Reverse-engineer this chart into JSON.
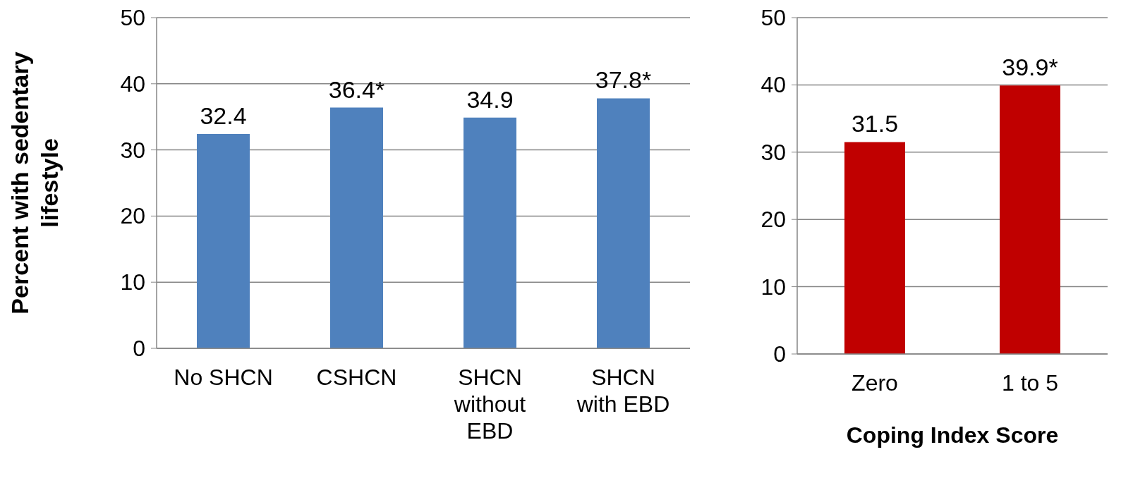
{
  "chart_data": [
    {
      "type": "bar",
      "ylabel": "Percent with sedentary lifestyle",
      "categories": [
        "No SHCN",
        "CSHCN",
        "SHCN without EBD",
        "SHCN with EBD"
      ],
      "values": [
        32.4,
        36.4,
        34.9,
        37.8
      ],
      "value_labels": [
        "32.4",
        "36.4*",
        "34.9",
        "37.8*"
      ],
      "color": "#4f81bd",
      "ylim": [
        0,
        50
      ],
      "yticks": [
        0,
        10,
        20,
        30,
        40,
        50
      ],
      "grid": "y"
    },
    {
      "type": "bar",
      "xlabel": "Coping Index Score",
      "categories": [
        "Zero",
        "1 to 5"
      ],
      "values": [
        31.5,
        39.9
      ],
      "value_labels": [
        "31.5",
        "39.9*"
      ],
      "color": "#c00000",
      "ylim": [
        0,
        50
      ],
      "yticks": [
        0,
        10,
        20,
        30,
        40,
        50
      ],
      "grid": "y"
    }
  ]
}
